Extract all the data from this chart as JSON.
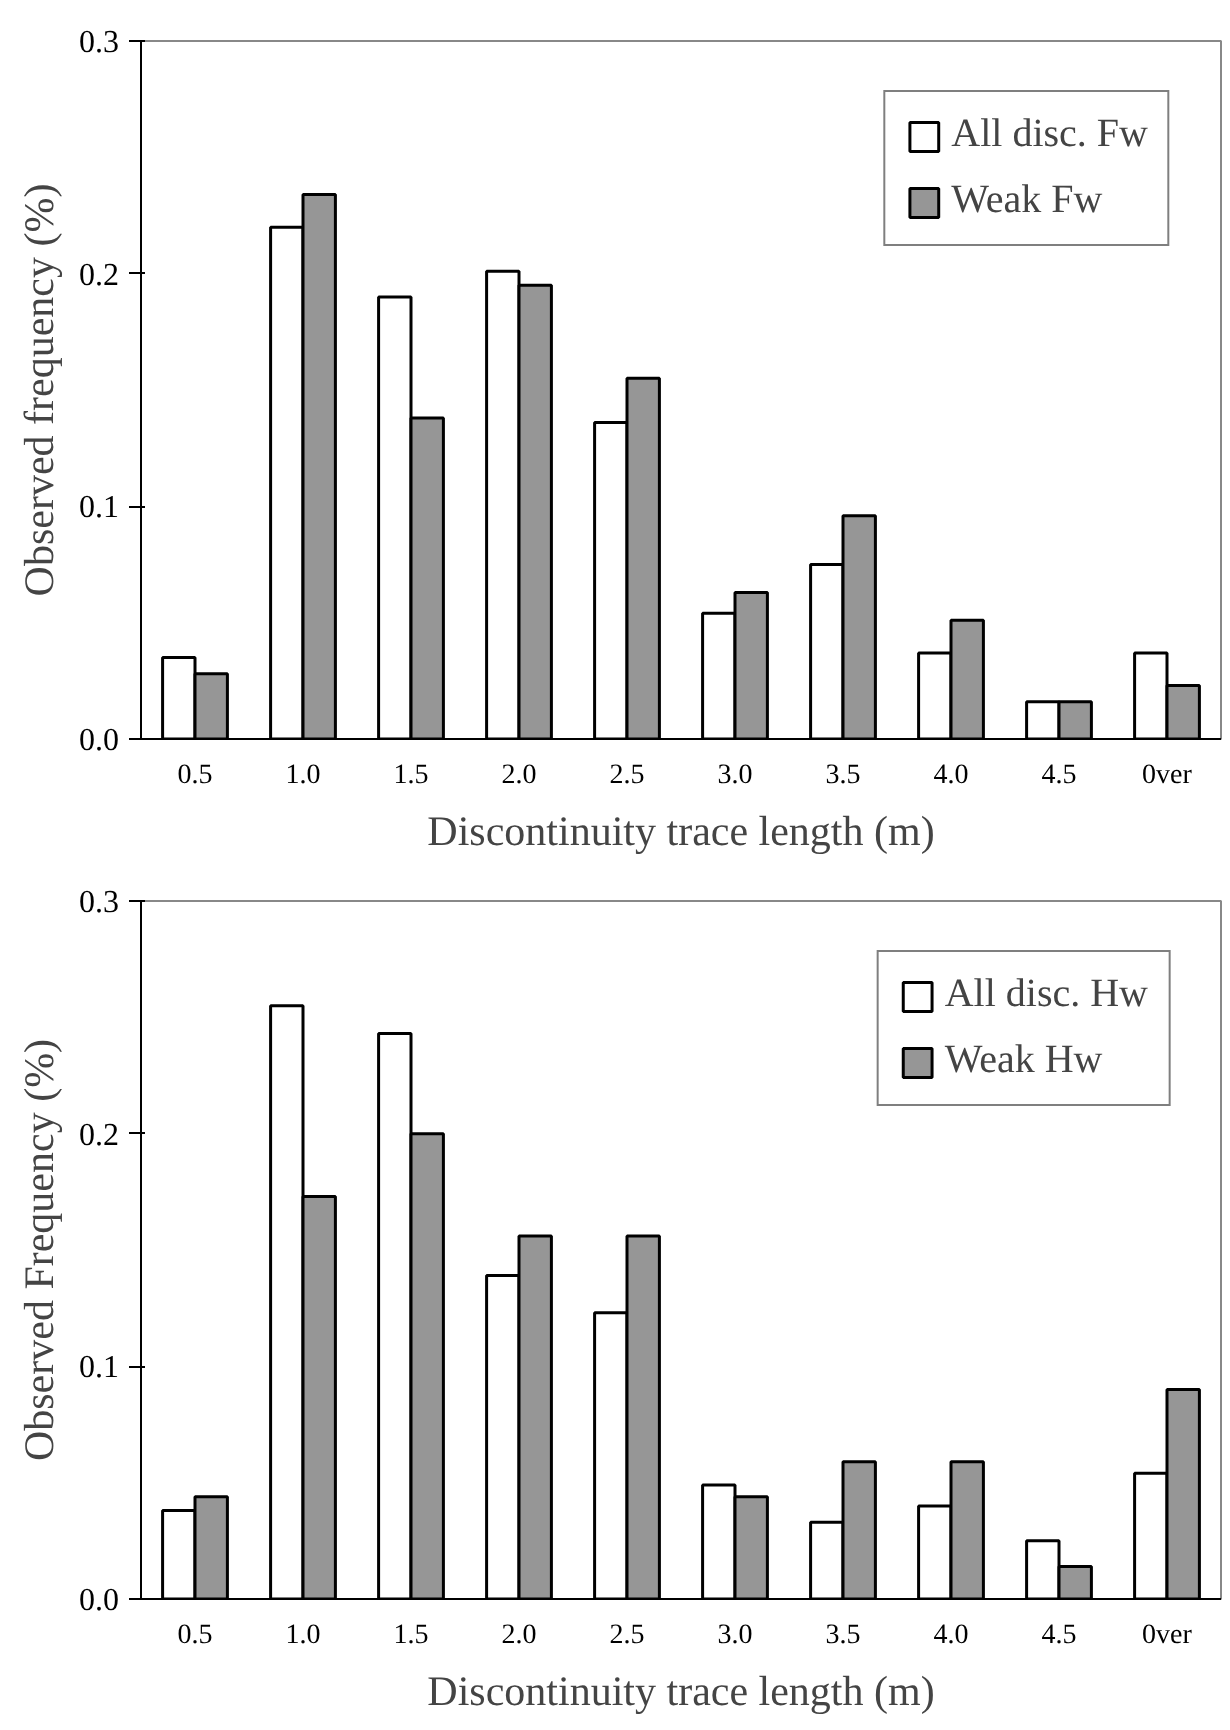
{
  "chart_data": [
    {
      "type": "bar",
      "xlabel": "Discontinuity trace length (m)",
      "ylabel": "Observed frequency (%)",
      "categories": [
        "0.5",
        "1.0",
        "1.5",
        "2.0",
        "2.5",
        "3.0",
        "3.5",
        "4.0",
        "4.5",
        "0ver"
      ],
      "series": [
        {
          "name": "All disc. Fw",
          "color": "#ffffff",
          "values": [
            0.035,
            0.22,
            0.19,
            0.201,
            0.136,
            0.054,
            0.075,
            0.037,
            0.016,
            0.037
          ]
        },
        {
          "name": "Weak Fw",
          "color": "#969696",
          "values": [
            0.028,
            0.234,
            0.138,
            0.195,
            0.155,
            0.063,
            0.096,
            0.051,
            0.016,
            0.023
          ]
        }
      ],
      "ylim": [
        0,
        0.3
      ],
      "yticks": [
        {
          "value": 0,
          "label": "0.0"
        },
        0.1,
        0.2,
        0.3
      ],
      "grid": false,
      "legend": "top right"
    },
    {
      "type": "bar",
      "xlabel": "Discontinuity trace length (m)",
      "ylabel": "Observed Frequency (%)",
      "categories": [
        "0.5",
        "1.0",
        "1.5",
        "2.0",
        "2.5",
        "3.0",
        "3.5",
        "4.0",
        "4.5",
        "0ver"
      ],
      "series": [
        {
          "name": "All disc. Hw",
          "color": "#ffffff",
          "values": [
            0.038,
            0.255,
            0.243,
            0.139,
            0.123,
            0.049,
            0.033,
            0.04,
            0.025,
            0.054
          ]
        },
        {
          "name": "Weak Hw",
          "color": "#969696",
          "values": [
            0.044,
            0.173,
            0.2,
            0.156,
            0.156,
            0.044,
            0.059,
            0.059,
            0.014,
            0.09
          ]
        }
      ],
      "ylim": [
        0,
        0.3
      ],
      "yticks": [
        {
          "value": 0,
          "label": "0.0"
        },
        0.1,
        0.2,
        0.3
      ],
      "grid": false,
      "legend": "top right"
    }
  ]
}
